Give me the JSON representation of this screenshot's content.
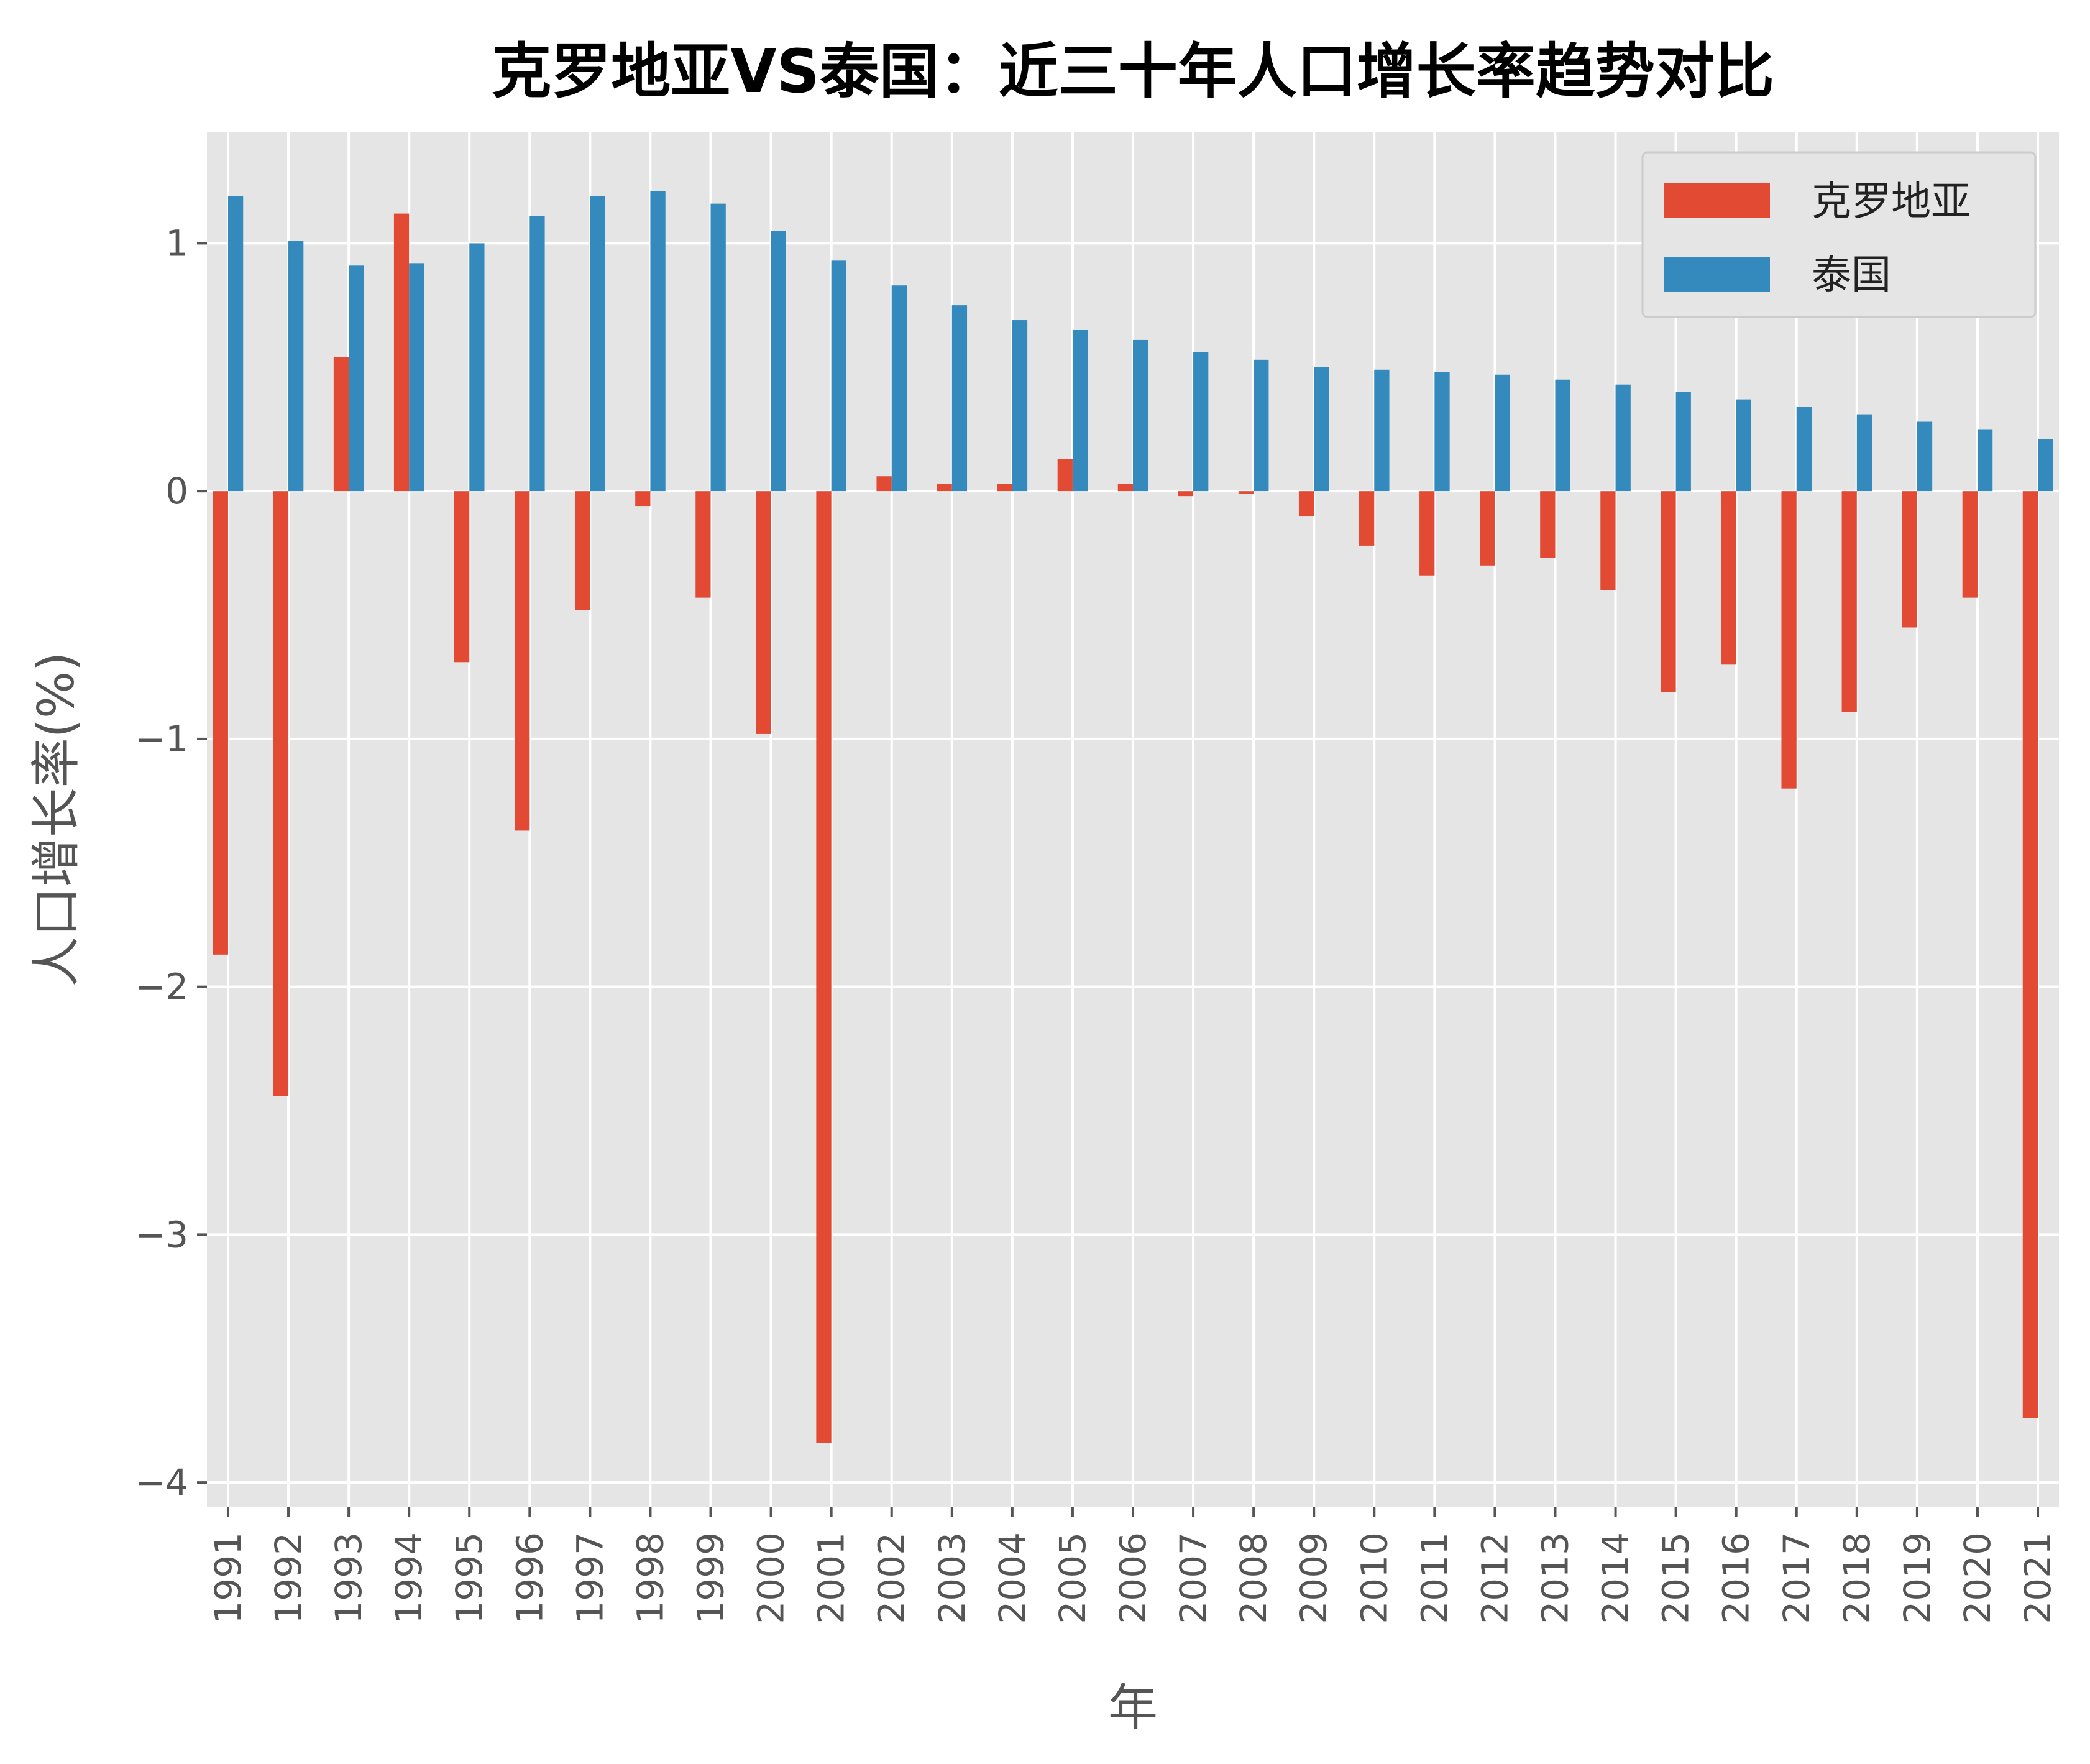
{
  "chart_data": {
    "type": "bar",
    "title": "克罗地亚VS泰国：近三十年人口增长率趋势对比",
    "xlabel": "年",
    "ylabel": "人口增长率(%)",
    "ylim": [
      -4.1,
      1.45
    ],
    "yticks": [
      1,
      0,
      -1,
      -2,
      -3,
      -4
    ],
    "ytick_labels": [
      "1",
      "0",
      "−1",
      "−2",
      "−3",
      "−4"
    ],
    "grid": true,
    "legend_position": "top-right",
    "categories": [
      "1991",
      "1992",
      "1993",
      "1994",
      "1995",
      "1996",
      "1997",
      "1998",
      "1999",
      "2000",
      "2001",
      "2002",
      "2003",
      "2004",
      "2005",
      "2006",
      "2007",
      "2008",
      "2009",
      "2010",
      "2011",
      "2012",
      "2013",
      "2014",
      "2015",
      "2016",
      "2017",
      "2018",
      "2019",
      "2020",
      "2021"
    ],
    "series": [
      {
        "name": "克罗地亚",
        "color": "#E24A33",
        "values": [
          -1.87,
          -2.44,
          0.54,
          1.12,
          -0.69,
          -1.37,
          -0.48,
          -0.06,
          -0.43,
          -0.98,
          -3.84,
          0.06,
          0.03,
          0.03,
          0.13,
          0.03,
          -0.02,
          -0.01,
          -0.1,
          -0.22,
          -0.34,
          -0.3,
          -0.27,
          -0.4,
          -0.81,
          -0.7,
          -1.2,
          -0.89,
          -0.55,
          -0.43,
          -3.74
        ]
      },
      {
        "name": "泰国",
        "color": "#348ABD",
        "values": [
          1.19,
          1.01,
          0.91,
          0.92,
          1.0,
          1.11,
          1.19,
          1.21,
          1.16,
          1.05,
          0.93,
          0.83,
          0.75,
          0.69,
          0.65,
          0.61,
          0.56,
          0.53,
          0.5,
          0.49,
          0.48,
          0.47,
          0.45,
          0.43,
          0.4,
          0.37,
          0.34,
          0.31,
          0.28,
          0.25,
          0.21
        ]
      }
    ]
  }
}
